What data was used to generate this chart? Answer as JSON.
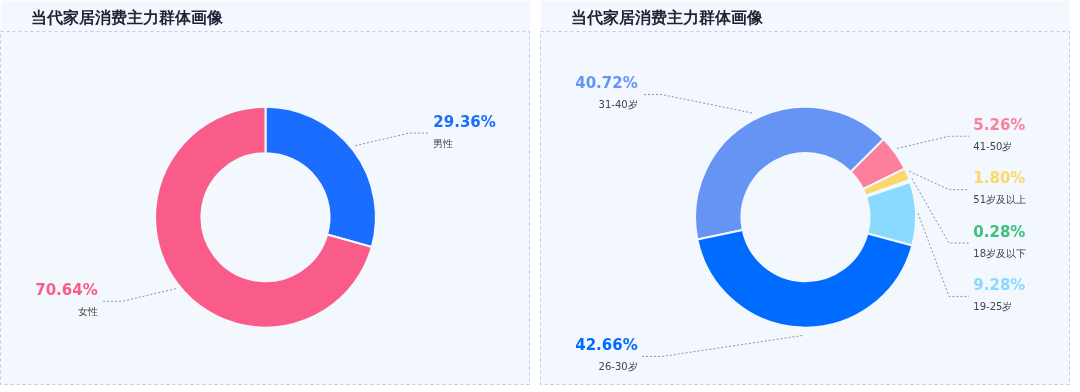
{
  "chart_data": [
    {
      "type": "donut",
      "title": "当代家居消费主力群体画像",
      "categories": [
        "男性",
        "女性"
      ],
      "values": [
        29.36,
        70.64
      ],
      "colors": [
        "#1a6dff",
        "#fa5c8a"
      ],
      "value_labels": [
        "29.36%",
        "70.64%"
      ]
    },
    {
      "type": "donut",
      "title": "当代家居消费主力群体画像",
      "categories": [
        "31-40岁",
        "41-50岁",
        "51岁及以上",
        "18岁及以下",
        "19-25岁",
        "26-30岁"
      ],
      "values": [
        40.72,
        5.26,
        1.8,
        0.28,
        9.28,
        42.66
      ],
      "colors": [
        "#6694f5",
        "#fc809e",
        "#fcd86a",
        "#3cc07a",
        "#8ad9ff",
        "#006cff"
      ],
      "value_labels": [
        "40.72%",
        "5.26%",
        "1.80%",
        "0.28%",
        "9.28%",
        "42.66%"
      ]
    }
  ]
}
